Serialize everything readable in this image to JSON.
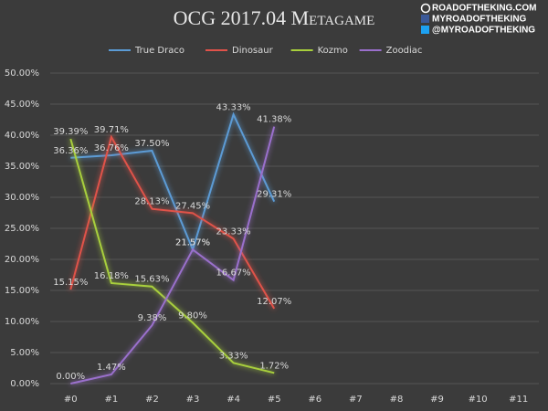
{
  "chart_data": {
    "type": "line",
    "title": "OCG 2017.04 Metagame",
    "annotations": [
      "ROADOFTHEKING.COM",
      "MYROADOFTHEKING",
      "@MYROADOFTHEKING"
    ],
    "categories": [
      "#0",
      "#1",
      "#2",
      "#3",
      "#4",
      "#5",
      "#6",
      "#7",
      "#8",
      "#9",
      "#10",
      "#11"
    ],
    "series": [
      {
        "name": "True Draco",
        "color": "#5b9bd5",
        "values": [
          36.36,
          36.76,
          37.5,
          21.57,
          43.33,
          29.31,
          null,
          null,
          null,
          null,
          null,
          null
        ],
        "value_labels": [
          "36.36%",
          "36.76%",
          "37.50%",
          "21.57%",
          "43.33%",
          "29.31%",
          null,
          null,
          null,
          null,
          null,
          null
        ]
      },
      {
        "name": "Dinosaur",
        "color": "#e0524a",
        "values": [
          15.15,
          39.71,
          28.13,
          27.45,
          23.33,
          12.07,
          null,
          null,
          null,
          null,
          null,
          null
        ],
        "value_labels": [
          "15.15%",
          "39.71%",
          "28.13%",
          "27.45%",
          "23.33%",
          "12.07%",
          null,
          null,
          null,
          null,
          null,
          null
        ]
      },
      {
        "name": "Kozmo",
        "color": "#a8cf3c",
        "values": [
          39.39,
          16.18,
          15.63,
          9.8,
          3.33,
          1.72,
          null,
          null,
          null,
          null,
          null,
          null
        ],
        "value_labels": [
          "39.39%",
          "16.18%",
          "15.63%",
          "9.80%",
          "3.33%",
          "1.72%",
          null,
          null,
          null,
          null,
          null,
          null
        ]
      },
      {
        "name": "Zoodiac",
        "color": "#9a6fcc",
        "values": [
          0,
          1.47,
          9.38,
          21.57,
          16.67,
          41.38,
          null,
          null,
          null,
          null,
          null,
          null
        ],
        "value_labels": [
          "0.00%",
          "1.47%",
          "9.38%",
          "21.57%",
          "16.67%",
          "41.38%",
          null,
          null,
          null,
          null,
          null,
          null
        ]
      }
    ],
    "ylim": [
      0,
      50
    ],
    "yticks": [
      {
        "value": 0,
        "label": "0.00%"
      },
      {
        "value": 5,
        "label": "5.00%"
      },
      {
        "value": 10,
        "label": "10.00%"
      },
      {
        "value": 15,
        "label": "15.00%"
      },
      {
        "value": 20,
        "label": "20.00%"
      },
      {
        "value": 25,
        "label": "25.00%"
      },
      {
        "value": 30,
        "label": "30.00%"
      },
      {
        "value": 35,
        "label": "35.00%"
      },
      {
        "value": 40,
        "label": "40.00%"
      },
      {
        "value": 45,
        "label": "45.00%"
      },
      {
        "value": 50,
        "label": "50.00%"
      }
    ],
    "grid": true,
    "legend": "top"
  }
}
